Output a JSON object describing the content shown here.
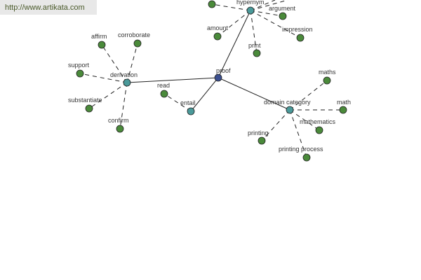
{
  "site_url": "http://www.artikata.com",
  "colors": {
    "center": "#3b4f8f",
    "hub": "#4a9a9a",
    "leaf": "#4a8a3a"
  },
  "nodes": [
    {
      "id": "proof",
      "label": "proof",
      "type": "center"
    },
    {
      "id": "hypernym",
      "label": "hypernym",
      "type": "hub"
    },
    {
      "id": "derivation",
      "label": "derivation",
      "type": "hub"
    },
    {
      "id": "entail",
      "label": "entail",
      "type": "hub"
    },
    {
      "id": "domain",
      "label": "domain category",
      "type": "hub"
    },
    {
      "id": "h0",
      "label": "",
      "type": "leaf"
    },
    {
      "id": "argument",
      "label": "argument",
      "type": "leaf"
    },
    {
      "id": "amount",
      "label": "amount",
      "type": "leaf"
    },
    {
      "id": "print",
      "label": "print",
      "type": "leaf"
    },
    {
      "id": "impression",
      "label": "impression",
      "type": "leaf"
    },
    {
      "id": "affirm",
      "label": "affirm",
      "type": "leaf"
    },
    {
      "id": "corroborate",
      "label": "corroborate",
      "type": "leaf"
    },
    {
      "id": "support",
      "label": "support",
      "type": "leaf"
    },
    {
      "id": "substantiate",
      "label": "substantiate",
      "type": "leaf"
    },
    {
      "id": "confirm",
      "label": "confirm",
      "type": "leaf"
    },
    {
      "id": "read",
      "label": "read",
      "type": "leaf"
    },
    {
      "id": "maths",
      "label": "maths",
      "type": "leaf"
    },
    {
      "id": "math",
      "label": "math",
      "type": "leaf"
    },
    {
      "id": "mathematics",
      "label": "mathematics",
      "type": "leaf"
    },
    {
      "id": "printing",
      "label": "printing",
      "type": "leaf"
    },
    {
      "id": "printing_process",
      "label": "printing process",
      "type": "leaf"
    }
  ],
  "edges": [
    [
      "proof",
      "hypernym",
      "solid"
    ],
    [
      "proof",
      "derivation",
      "solid"
    ],
    [
      "proof",
      "entail",
      "solid"
    ],
    [
      "proof",
      "domain",
      "solid"
    ],
    [
      "hypernym",
      "h0",
      "dashed"
    ],
    [
      "hypernym",
      "argument",
      "dashed"
    ],
    [
      "hypernym",
      "amount",
      "dashed"
    ],
    [
      "hypernym",
      "print",
      "dashed"
    ],
    [
      "hypernym",
      "impression",
      "dashed"
    ],
    [
      "derivation",
      "affirm",
      "dashed"
    ],
    [
      "derivation",
      "corroborate",
      "dashed"
    ],
    [
      "derivation",
      "support",
      "dashed"
    ],
    [
      "derivation",
      "substantiate",
      "dashed"
    ],
    [
      "derivation",
      "confirm",
      "dashed"
    ],
    [
      "entail",
      "read",
      "dashed"
    ],
    [
      "domain",
      "maths",
      "dashed"
    ],
    [
      "domain",
      "math",
      "dashed"
    ],
    [
      "domain",
      "mathematics",
      "dashed"
    ],
    [
      "domain",
      "printing",
      "dashed"
    ],
    [
      "domain",
      "printing_process",
      "dashed"
    ]
  ]
}
